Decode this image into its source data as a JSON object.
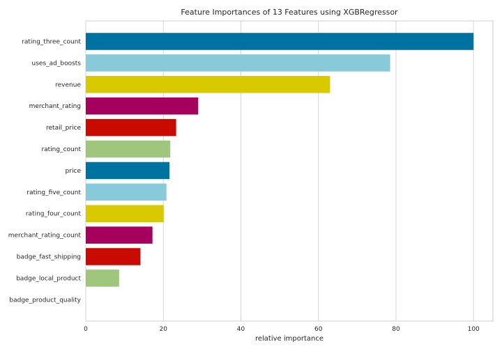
{
  "chart_data": {
    "type": "bar",
    "orientation": "horizontal",
    "title": "Feature Importances of 13 Features using XGBRegressor",
    "xlabel": "relative importance",
    "ylabel": "",
    "xlim": [
      0,
      105
    ],
    "xticks": [
      0,
      20,
      40,
      60,
      80,
      100
    ],
    "grid": true,
    "legend": "none",
    "categories": [
      "rating_three_count",
      "uses_ad_boosts",
      "revenue",
      "merchant_rating",
      "retail_price",
      "rating_count",
      "price",
      "rating_five_count",
      "rating_four_count",
      "merchant_rating_count",
      "badge_fast_shipping",
      "badge_local_product",
      "badge_product_quality"
    ],
    "values": [
      100,
      78.5,
      63,
      29,
      23.3,
      21.8,
      21.6,
      20.8,
      20.1,
      17.2,
      14.1,
      8.6,
      0
    ],
    "colors": [
      "#0072a2",
      "#88c9da",
      "#d8c900",
      "#a6005f",
      "#c90a00",
      "#9fc67c",
      "#0072a2",
      "#88c9da",
      "#d8c900",
      "#a6005f",
      "#c90a00",
      "#9fc67c",
      "#0072a2"
    ]
  }
}
